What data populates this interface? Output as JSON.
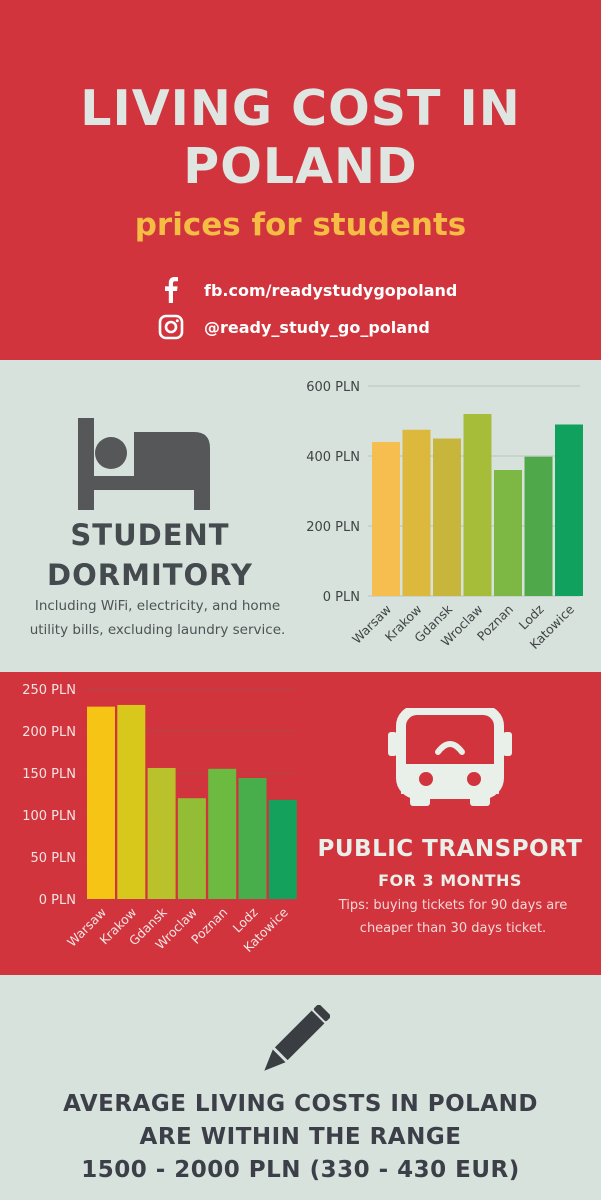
{
  "header": {
    "title_line1": "LIVING COST IN",
    "title_line2": "POLAND",
    "subtitle": "prices for students",
    "facebook": "fb.com/readystudygopoland",
    "instagram": "@ready_study_go_poland"
  },
  "dormitory": {
    "title_line1": "STUDENT",
    "title_line2": "DORMITORY",
    "desc_line1": "Including WiFi, electricity, and home",
    "desc_line2": "utility bills, excluding laundry service."
  },
  "transport": {
    "title": "PUBLIC TRANSPORT",
    "subtitle": "FOR 3 MONTHS",
    "tip_line1": "Tips: buying tickets for 90 days are",
    "tip_line2": "cheaper than 30 days ticket."
  },
  "summary": {
    "line1": "AVERAGE LIVING COSTS IN POLAND",
    "line2": "ARE WITHIN THE RANGE",
    "line3": "1500 - 2000 PLN (330 - 430 EUR)"
  },
  "colors": {
    "red": "#d1343c",
    "grey": "#d8e2dc",
    "yellow": "#f5bd43",
    "dark": "#444a4d"
  },
  "chart_data": [
    {
      "type": "bar",
      "categories": [
        "Warsaw",
        "Krakow",
        "Gdansk",
        "Wroclaw",
        "Poznan",
        "Lodz",
        "Katowice"
      ],
      "values": [
        440,
        475,
        450,
        520,
        360,
        398,
        490
      ],
      "yticks": [
        "0 PLN",
        "200 PLN",
        "400 PLN",
        "600 PLN"
      ],
      "ylim": [
        0,
        600
      ],
      "colors": [
        "#f6be4f",
        "#dcb83d",
        "#c8b63c",
        "#a6bd3a",
        "#7db744",
        "#4fa94b",
        "#11a15e"
      ],
      "grid": true
    },
    {
      "type": "bar",
      "categories": [
        "Warsaw",
        "Krakow",
        "Gdansk",
        "Wroclaw",
        "Poznan",
        "Lodz",
        "Katowice"
      ],
      "values": [
        229,
        231,
        156,
        120,
        155,
        144,
        118
      ],
      "yticks": [
        "0 PLN",
        "50 PLN",
        "100 PLN",
        "150 PLN",
        "200 PLN",
        "250 PLN"
      ],
      "ylim": [
        0,
        250
      ],
      "colors": [
        "#f6c414",
        "#d8c81b",
        "#b9c22a",
        "#92bd35",
        "#6dba40",
        "#48ae4c",
        "#14a15c"
      ],
      "grid": true
    }
  ]
}
